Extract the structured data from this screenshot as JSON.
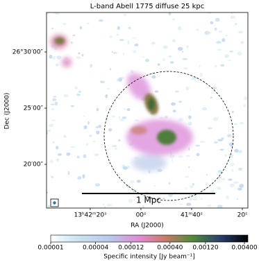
{
  "chart_data": {
    "type": "image",
    "title": "L-band Abell 1775 diffuse 25 kpc",
    "xlabel": "RA (J2000)",
    "ylabel": "Dec (J2000)",
    "xlim": [
      205.6552,
      205.3242
    ],
    "ylim": [
      26.2685,
      26.5586
    ],
    "xticks": [
      {
        "value": 205.58333,
        "label": "13ʰ42ᵐ20ˢ"
      },
      {
        "value": 205.5,
        "label": "00ˢ"
      },
      {
        "value": 205.41667,
        "label": "41ᵐ40ˢ"
      },
      {
        "value": 205.33333,
        "label": "20ˢ"
      }
    ],
    "yticks": [
      {
        "value": 26.5,
        "label": "26°30′00″"
      },
      {
        "value": 26.41667,
        "label": "25′00″"
      },
      {
        "value": 26.33333,
        "label": "20′00″"
      }
    ],
    "scale_bar_label": "1 Mpc",
    "colorbar": {
      "label": "Specific intensity [Jy beam⁻¹]",
      "scale": "log",
      "lim": [
        1e-05,
        0.00445
      ],
      "ticks": [
        {
          "value": 1e-05,
          "label": "0.00001"
        },
        {
          "value": 4e-05,
          "label": "0.00004"
        },
        {
          "value": 0.00012,
          "label": "0.00012"
        },
        {
          "value": 0.0004,
          "label": "0.00040"
        },
        {
          "value": 0.0012,
          "label": "0.00120"
        },
        {
          "value": 0.004,
          "label": "0.00400"
        }
      ]
    }
  }
}
